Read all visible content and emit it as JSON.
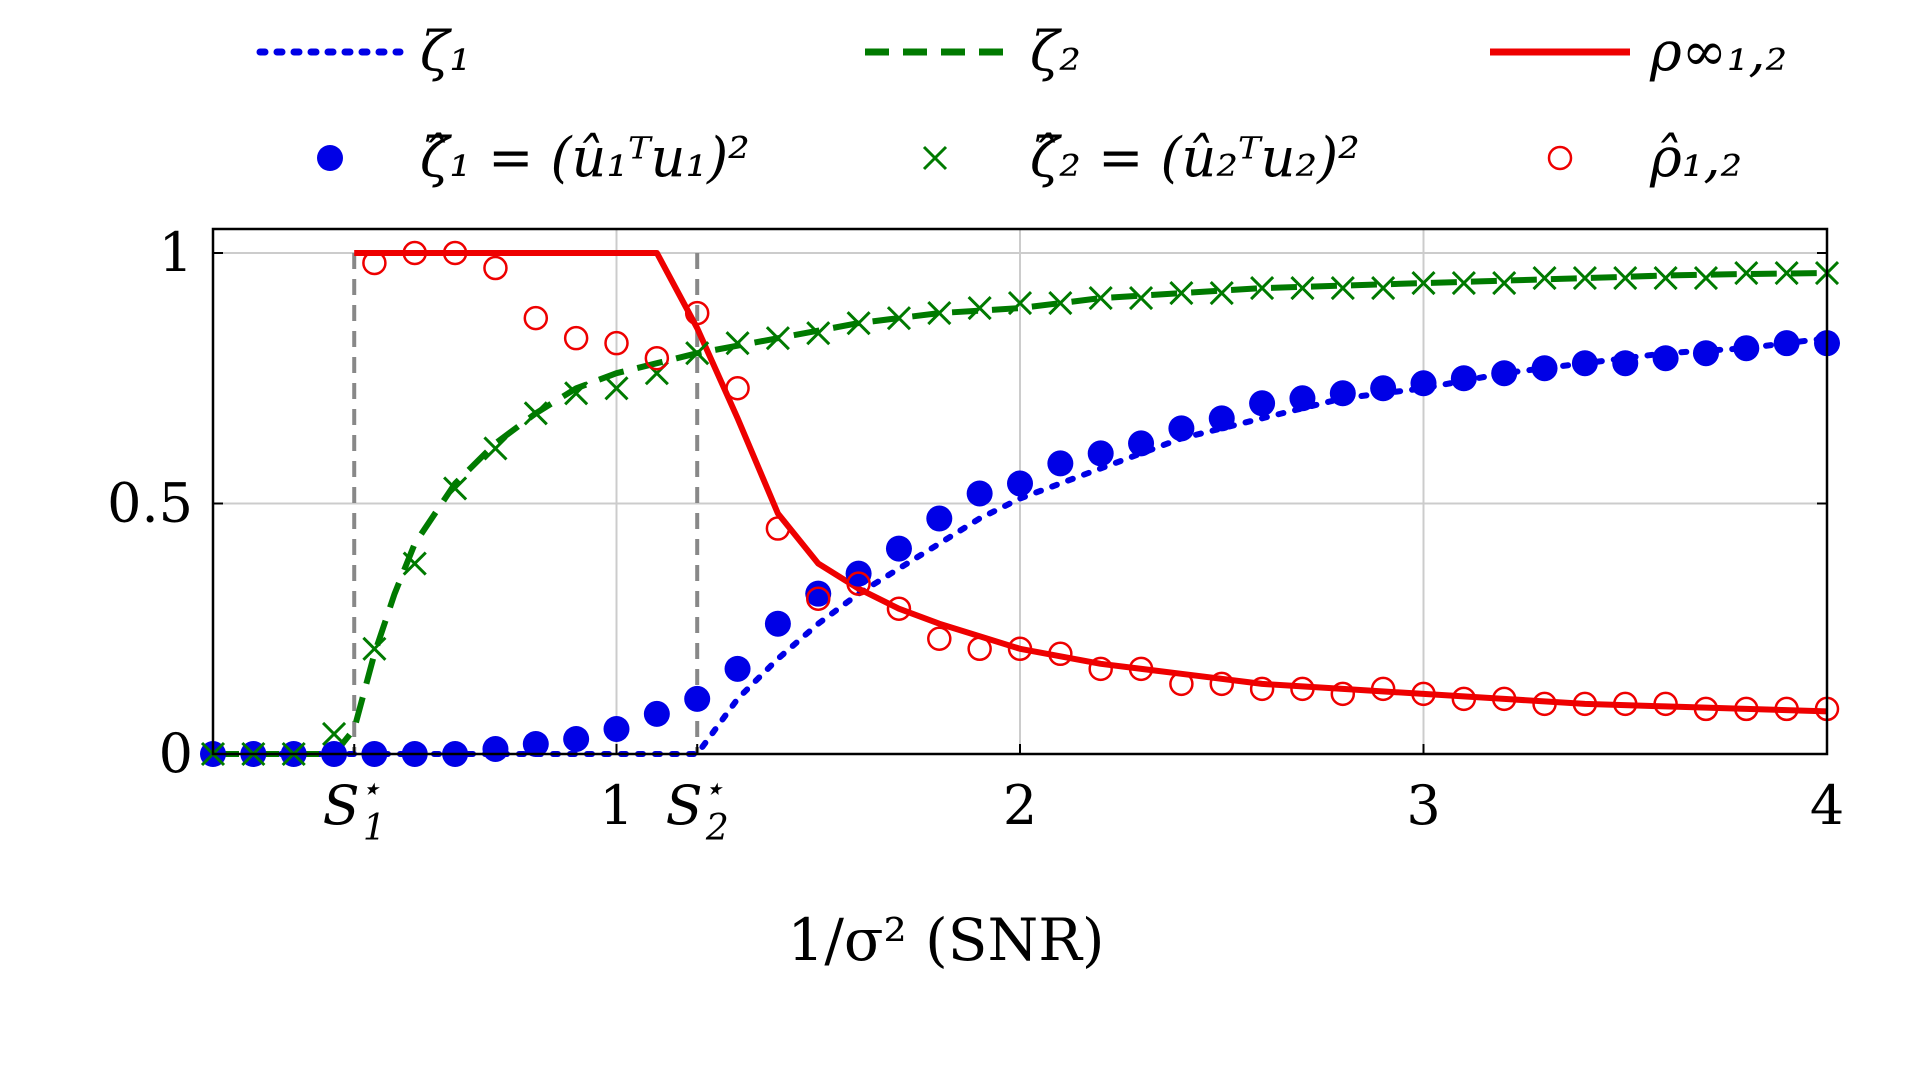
{
  "chart_data": {
    "type": "line",
    "xlabel": "1/σ²  (SNR)",
    "xlim": [
      0,
      4
    ],
    "ylim": [
      0,
      1
    ],
    "x_ticks": [
      {
        "value": 0.35,
        "label": "S",
        "sub": "1",
        "sup": "⋆"
      },
      {
        "value": 1,
        "label": "1"
      },
      {
        "value": 1.2,
        "label": "S",
        "sub": "2",
        "sup": "⋆"
      },
      {
        "value": 2,
        "label": "2"
      },
      {
        "value": 3,
        "label": "3"
      },
      {
        "value": 4,
        "label": "4"
      }
    ],
    "y_ticks": [
      {
        "value": 0,
        "label": "0"
      },
      {
        "value": 0.5,
        "label": "0.5"
      },
      {
        "value": 1,
        "label": "1"
      }
    ],
    "grid": true,
    "thresholds": [
      0.35,
      1.2
    ],
    "legend_position": "top",
    "legend": [
      {
        "key": "zeta1_line",
        "label": "ζ₁",
        "style": "dotted",
        "color": "#0000e6"
      },
      {
        "key": "zeta2_line",
        "label": "ζ₂",
        "style": "dashed",
        "color": "#007a00"
      },
      {
        "key": "rho_line",
        "label": "ρ∞₁,₂",
        "style": "solid",
        "color": "#ee0000"
      },
      {
        "key": "zeta1_marks",
        "label": "ζ̂₁ = (û₁ᵀu₁)²",
        "style": "filled-circle",
        "color": "#0000e6"
      },
      {
        "key": "zeta2_marks",
        "label": "ζ̂₂ = (û₂ᵀu₂)²",
        "style": "cross",
        "color": "#007a00"
      },
      {
        "key": "rho_marks",
        "label": "ρ̂₁,₂",
        "style": "open-circle",
        "color": "#ee0000"
      }
    ],
    "series": [
      {
        "key": "zeta1_line",
        "type": "line",
        "style": "dotted",
        "color": "#0000e6",
        "x": [
          0,
          0.35,
          1.2,
          1.3,
          1.4,
          1.5,
          1.6,
          1.7,
          1.8,
          1.9,
          2.0,
          2.2,
          2.4,
          2.6,
          2.8,
          3.0,
          3.2,
          3.4,
          3.6,
          3.8,
          4.0
        ],
        "y": [
          0,
          0,
          0,
          0.11,
          0.19,
          0.26,
          0.32,
          0.37,
          0.42,
          0.47,
          0.51,
          0.57,
          0.63,
          0.67,
          0.71,
          0.73,
          0.76,
          0.78,
          0.8,
          0.81,
          0.83
        ]
      },
      {
        "key": "zeta2_line",
        "type": "line",
        "style": "dashed",
        "color": "#007a00",
        "x": [
          0,
          0.3,
          0.35,
          0.4,
          0.45,
          0.5,
          0.6,
          0.7,
          0.8,
          0.9,
          1.0,
          1.1,
          1.2,
          1.4,
          1.6,
          1.8,
          2.0,
          2.2,
          2.4,
          2.6,
          2.8,
          3.0,
          3.2,
          3.4,
          3.6,
          3.8,
          4.0
        ],
        "y": [
          0,
          0,
          0.05,
          0.2,
          0.32,
          0.42,
          0.54,
          0.62,
          0.68,
          0.73,
          0.76,
          0.78,
          0.8,
          0.83,
          0.86,
          0.88,
          0.89,
          0.91,
          0.92,
          0.93,
          0.935,
          0.94,
          0.945,
          0.95,
          0.955,
          0.958,
          0.96
        ]
      },
      {
        "key": "rho_line",
        "type": "line",
        "style": "solid",
        "color": "#ee0000",
        "x": [
          0.35,
          1.1,
          1.2,
          1.3,
          1.4,
          1.5,
          1.6,
          1.7,
          1.8,
          2.0,
          2.2,
          2.4,
          2.6,
          2.8,
          3.0,
          3.2,
          3.4,
          3.6,
          3.8,
          4.0
        ],
        "y": [
          1,
          1,
          0.85,
          0.67,
          0.48,
          0.38,
          0.33,
          0.29,
          0.26,
          0.21,
          0.18,
          0.16,
          0.14,
          0.13,
          0.12,
          0.11,
          0.1,
          0.095,
          0.09,
          0.085
        ]
      },
      {
        "key": "zeta1_marks",
        "type": "scatter",
        "marker": "filled-circle",
        "color": "#0000e6",
        "x": [
          0,
          0.1,
          0.2,
          0.3,
          0.4,
          0.5,
          0.6,
          0.7,
          0.8,
          0.9,
          1.0,
          1.1,
          1.2,
          1.3,
          1.4,
          1.5,
          1.6,
          1.7,
          1.8,
          1.9,
          2.0,
          2.1,
          2.2,
          2.3,
          2.4,
          2.5,
          2.6,
          2.7,
          2.8,
          2.9,
          3.0,
          3.1,
          3.2,
          3.3,
          3.4,
          3.5,
          3.6,
          3.7,
          3.8,
          3.9,
          4.0
        ],
        "y": [
          0,
          0,
          0,
          0,
          0,
          0,
          0,
          0.01,
          0.02,
          0.03,
          0.05,
          0.08,
          0.11,
          0.17,
          0.26,
          0.32,
          0.36,
          0.41,
          0.47,
          0.52,
          0.54,
          0.58,
          0.6,
          0.62,
          0.65,
          0.67,
          0.7,
          0.71,
          0.72,
          0.73,
          0.74,
          0.75,
          0.76,
          0.77,
          0.78,
          0.78,
          0.79,
          0.8,
          0.81,
          0.82,
          0.82
        ]
      },
      {
        "key": "zeta2_marks",
        "type": "scatter",
        "marker": "cross",
        "color": "#007a00",
        "x": [
          0,
          0.1,
          0.2,
          0.3,
          0.4,
          0.5,
          0.6,
          0.7,
          0.8,
          0.9,
          1.0,
          1.1,
          1.2,
          1.3,
          1.4,
          1.5,
          1.6,
          1.7,
          1.8,
          1.9,
          2.0,
          2.1,
          2.2,
          2.3,
          2.4,
          2.5,
          2.6,
          2.7,
          2.8,
          2.9,
          3.0,
          3.1,
          3.2,
          3.3,
          3.4,
          3.5,
          3.6,
          3.7,
          3.8,
          3.9,
          4.0
        ],
        "y": [
          0,
          0,
          0,
          0.04,
          0.21,
          0.38,
          0.53,
          0.61,
          0.68,
          0.72,
          0.73,
          0.76,
          0.8,
          0.82,
          0.83,
          0.84,
          0.86,
          0.87,
          0.88,
          0.89,
          0.9,
          0.9,
          0.91,
          0.91,
          0.92,
          0.92,
          0.93,
          0.93,
          0.93,
          0.93,
          0.94,
          0.94,
          0.94,
          0.95,
          0.95,
          0.95,
          0.95,
          0.95,
          0.96,
          0.96,
          0.96
        ]
      },
      {
        "key": "rho_marks",
        "type": "scatter",
        "marker": "open-circle",
        "color": "#ee0000",
        "x": [
          0.4,
          0.5,
          0.6,
          0.7,
          0.8,
          0.9,
          1.0,
          1.1,
          1.2,
          1.3,
          1.4,
          1.5,
          1.6,
          1.7,
          1.8,
          1.9,
          2.0,
          2.1,
          2.2,
          2.3,
          2.4,
          2.5,
          2.6,
          2.7,
          2.8,
          2.9,
          3.0,
          3.1,
          3.2,
          3.3,
          3.4,
          3.5,
          3.6,
          3.7,
          3.8,
          3.9,
          4.0
        ],
        "y": [
          0.98,
          1.0,
          1.0,
          0.97,
          0.87,
          0.83,
          0.82,
          0.79,
          0.88,
          0.73,
          0.45,
          0.31,
          0.34,
          0.29,
          0.23,
          0.21,
          0.21,
          0.2,
          0.17,
          0.17,
          0.14,
          0.14,
          0.13,
          0.13,
          0.12,
          0.13,
          0.12,
          0.11,
          0.11,
          0.1,
          0.1,
          0.1,
          0.1,
          0.09,
          0.09,
          0.09,
          0.09
        ]
      }
    ]
  }
}
